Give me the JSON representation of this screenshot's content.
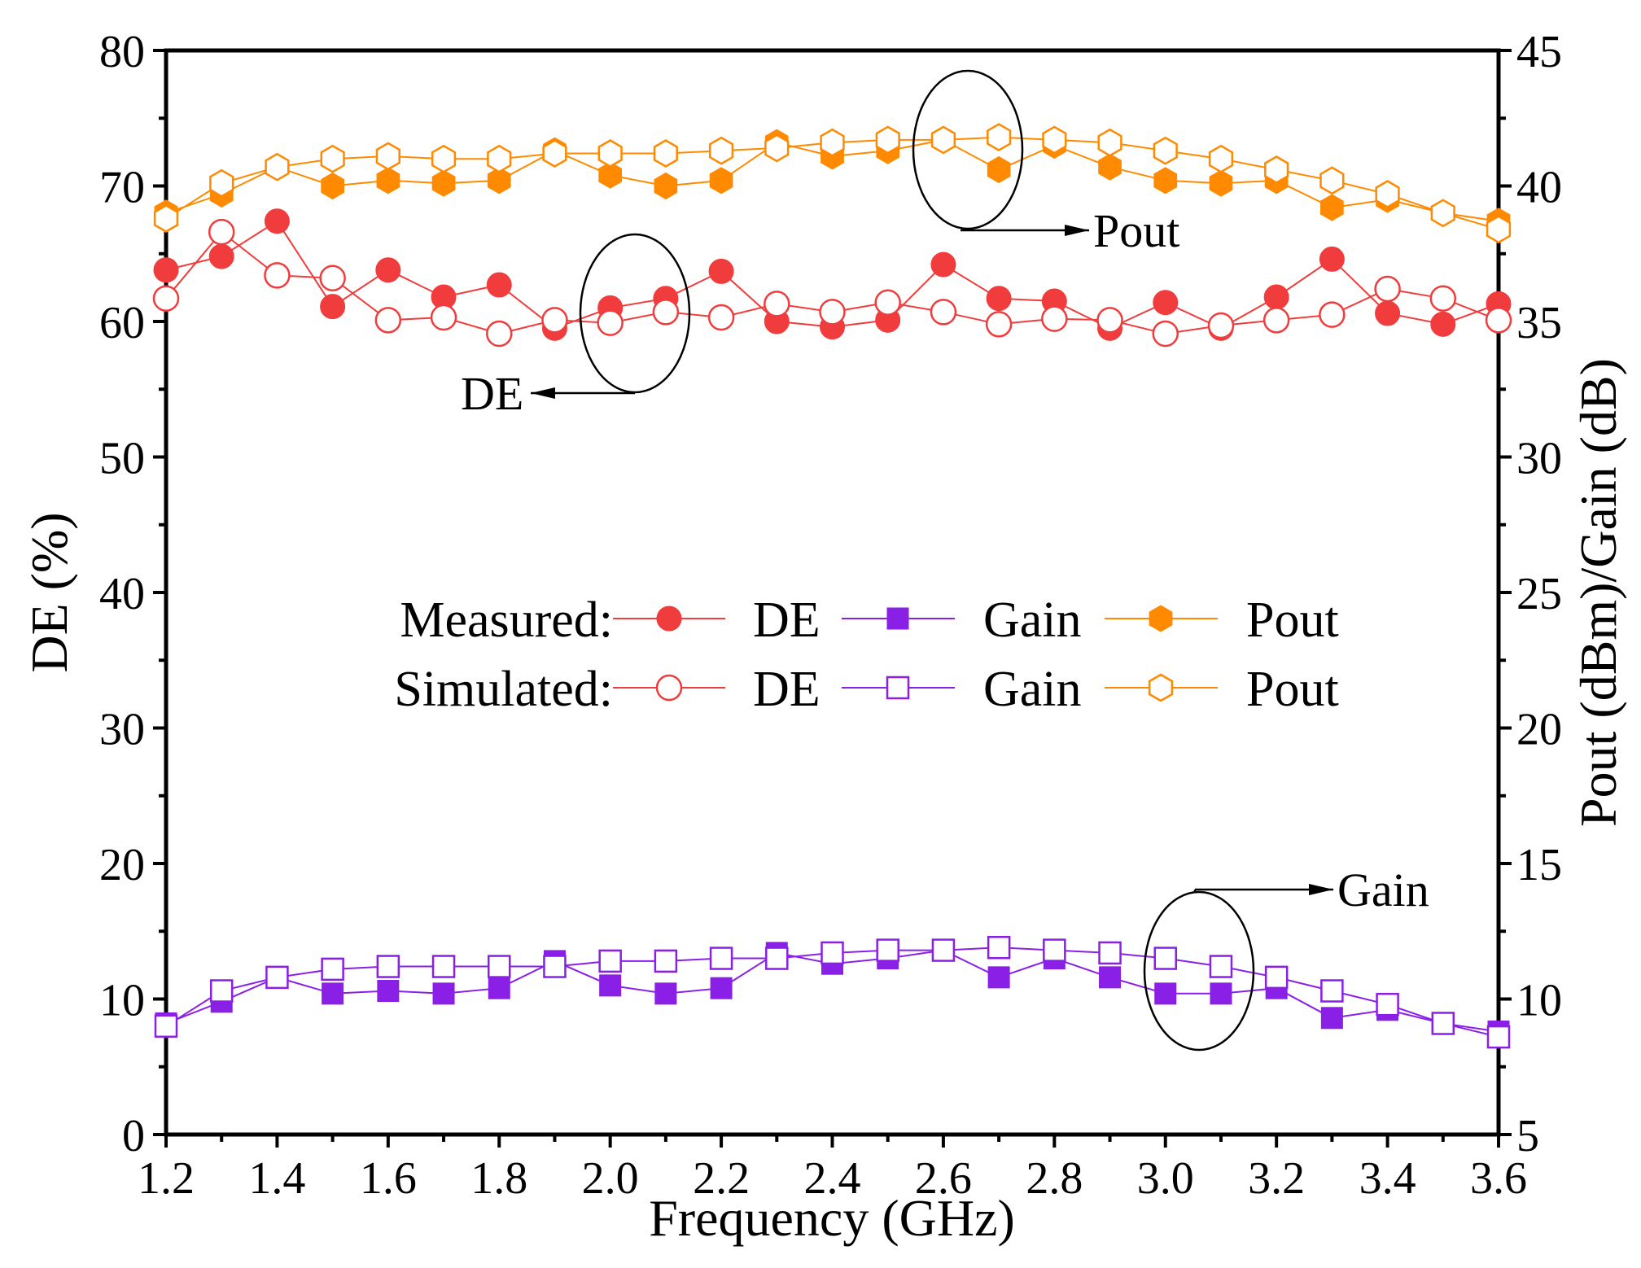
{
  "chart_data": {
    "type": "line",
    "xlabel": "Frequency (GHz)",
    "ylabel": "DE (%)",
    "y2label": "Pout (dBm)/Gain (dB)",
    "xlim": [
      1.2,
      3.6
    ],
    "ylim": [
      0,
      80
    ],
    "y2lim": [
      5,
      45
    ],
    "x_ticks": [
      "1.2",
      "1.4",
      "1.6",
      "1.8",
      "2.0",
      "2.2",
      "2.4",
      "2.6",
      "2.8",
      "3.0",
      "3.2",
      "3.4",
      "3.6"
    ],
    "y_ticks": [
      "0",
      "10",
      "20",
      "30",
      "40",
      "50",
      "60",
      "70",
      "80"
    ],
    "y2_ticks": [
      "5",
      "10",
      "15",
      "20",
      "25",
      "30",
      "35",
      "40",
      "45"
    ],
    "grid": false,
    "x": [
      1.2,
      1.3,
      1.4,
      1.5,
      1.6,
      1.7,
      1.8,
      1.9,
      2.0,
      2.1,
      2.2,
      2.3,
      2.4,
      2.5,
      2.6,
      2.7,
      2.8,
      2.9,
      3.0,
      3.1,
      3.2,
      3.3,
      3.4,
      3.5,
      3.6
    ],
    "series": [
      {
        "name": "Measured DE",
        "axis": "left",
        "marker": "circle",
        "filled": true,
        "color": "#f03c3c",
        "values": [
          63.8,
          64.8,
          67.4,
          61.1,
          63.8,
          61.8,
          62.7,
          59.5,
          61.0,
          61.7,
          63.7,
          60.0,
          59.6,
          60.1,
          64.2,
          61.7,
          61.5,
          59.5,
          61.4,
          59.5,
          61.8,
          64.6,
          60.6,
          59.8,
          61.3
        ]
      },
      {
        "name": "Simulated DE",
        "axis": "left",
        "marker": "circle",
        "filled": false,
        "color": "#f03c3c",
        "values": [
          61.7,
          66.6,
          63.4,
          63.2,
          60.1,
          60.3,
          59.1,
          60.1,
          59.9,
          60.7,
          60.3,
          61.3,
          60.7,
          61.4,
          60.7,
          59.8,
          60.2,
          60.1,
          59.1,
          59.7,
          60.1,
          60.5,
          62.4,
          61.7,
          60.1
        ]
      },
      {
        "name": "Measured Gain",
        "axis": "right",
        "marker": "square",
        "filled": true,
        "color": "#8a1fe6",
        "values": [
          9.1,
          9.9,
          10.8,
          10.2,
          10.3,
          10.2,
          10.4,
          11.4,
          10.5,
          10.2,
          10.4,
          11.7,
          11.3,
          11.5,
          11.8,
          10.8,
          11.5,
          10.8,
          10.2,
          10.2,
          10.4,
          9.3,
          9.6,
          9.1,
          8.8
        ]
      },
      {
        "name": "Simulated Gain",
        "axis": "right",
        "marker": "square",
        "filled": false,
        "color": "#8a1fe6",
        "values": [
          9.0,
          10.3,
          10.8,
          11.1,
          11.2,
          11.2,
          11.2,
          11.2,
          11.4,
          11.4,
          11.5,
          11.5,
          11.7,
          11.8,
          11.8,
          11.9,
          11.8,
          11.7,
          11.5,
          11.2,
          10.8,
          10.3,
          9.8,
          9.1,
          8.6
        ]
      },
      {
        "name": "Measured Pout",
        "axis": "right",
        "marker": "hexagon",
        "filled": true,
        "color": "#ff8a00",
        "values": [
          39.0,
          39.7,
          40.7,
          40.0,
          40.2,
          40.1,
          40.2,
          41.3,
          40.4,
          40.0,
          40.2,
          41.6,
          41.1,
          41.3,
          41.7,
          40.6,
          41.5,
          40.7,
          40.2,
          40.1,
          40.2,
          39.2,
          39.5,
          39.0,
          38.7
        ]
      },
      {
        "name": "Simulated Pout",
        "axis": "right",
        "marker": "hexagon",
        "filled": false,
        "color": "#ff8a00",
        "values": [
          38.8,
          40.1,
          40.7,
          41.0,
          41.1,
          41.0,
          41.0,
          41.2,
          41.2,
          41.2,
          41.3,
          41.4,
          41.6,
          41.7,
          41.7,
          41.8,
          41.7,
          41.6,
          41.3,
          41.0,
          40.6,
          40.2,
          39.7,
          39.0,
          38.4
        ]
      }
    ],
    "legend": {
      "placement": "center",
      "row_labels": [
        "Measured:",
        "Simulated:"
      ],
      "entry_labels": [
        "DE",
        "Gain",
        "Pout"
      ]
    },
    "annotations": [
      "Pout",
      "DE",
      "Gain"
    ]
  }
}
